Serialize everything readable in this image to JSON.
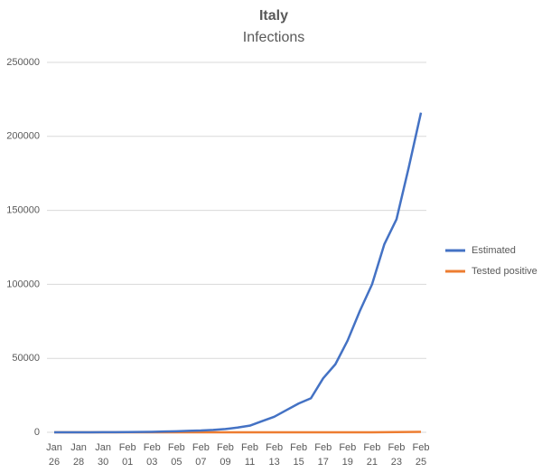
{
  "chart_data": {
    "type": "line",
    "title": "Italy",
    "subtitle": "Infections",
    "categories": [
      "Jan 26",
      null,
      "Jan 28",
      null,
      "Jan 30",
      null,
      "Feb 01",
      null,
      "Feb 03",
      null,
      "Feb 05",
      null,
      "Feb 07",
      null,
      "Feb 09",
      null,
      "Feb 11",
      null,
      "Feb 13",
      null,
      "Feb 15",
      null,
      "Feb 17",
      null,
      "Feb 19",
      null,
      "Feb 21",
      null,
      "Feb 23",
      null,
      "Feb 25"
    ],
    "series": [
      {
        "name": "Estimated",
        "color": "#4472c4",
        "values": [
          0,
          0,
          0,
          0,
          50,
          100,
          150,
          200,
          300,
          500,
          700,
          1000,
          1200,
          1600,
          2200,
          3200,
          4500,
          7500,
          10500,
          15000,
          19500,
          23000,
          36500,
          46000,
          62000,
          82000,
          100000,
          127000,
          144000,
          179000,
          216000
        ]
      },
      {
        "name": "Tested positive",
        "color": "#ed7d31",
        "values": [
          0,
          0,
          0,
          0,
          0,
          2,
          2,
          2,
          2,
          2,
          2,
          2,
          2,
          2,
          2,
          3,
          3,
          3,
          3,
          3,
          3,
          3,
          3,
          3,
          3,
          3,
          20,
          79,
          150,
          227,
          322
        ]
      }
    ],
    "ylim": [
      0,
      250000
    ],
    "yticks": [
      0,
      50000,
      100000,
      150000,
      200000,
      250000
    ],
    "grid": true,
    "legend": "right"
  }
}
